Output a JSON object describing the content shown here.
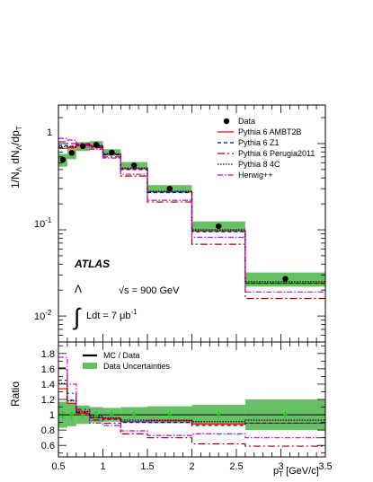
{
  "chart_data": [
    {
      "type": "line",
      "panel": "main",
      "ylabel": "1/N_Λ dN_Λ/dp_T",
      "yscale": "log",
      "ylim": [
        0.005,
        2.8
      ],
      "xlim": [
        0.5,
        3.5
      ],
      "ytick_labels": [
        "10^-2",
        "10^-1",
        "1"
      ],
      "bin_edges": [
        0.5,
        0.6,
        0.7,
        0.85,
        1.0,
        1.2,
        1.5,
        2.0,
        2.6,
        3.5
      ],
      "series": [
        {
          "name": "Data",
          "style": "points",
          "color": "#000000",
          "x": [
            0.55,
            0.65,
            0.775,
            0.925,
            1.1,
            1.35,
            1.75,
            2.3,
            3.05
          ],
          "values": [
            0.65,
            0.78,
            0.93,
            0.97,
            0.79,
            0.56,
            0.3,
            0.11,
            0.027
          ]
        },
        {
          "name": "Pythia 6 AMBT2B",
          "style": "step",
          "color": "#ff0000",
          "dash": "",
          "values": [
            0.88,
            0.9,
            0.95,
            0.93,
            0.75,
            0.51,
            0.275,
            0.097,
            0.024
          ]
        },
        {
          "name": "Pythia 6 Z1",
          "style": "step",
          "color": "#0000cc",
          "dash": "4,3",
          "values": [
            0.95,
            0.93,
            0.96,
            0.93,
            0.74,
            0.5,
            0.27,
            0.095,
            0.024
          ]
        },
        {
          "name": "Pythia 6 Perugia2011",
          "style": "step",
          "color": "#990000",
          "dash": "8,3,2,3",
          "values": [
            1.05,
            1.0,
            1.0,
            0.9,
            0.7,
            0.42,
            0.21,
            0.068,
            0.016
          ]
        },
        {
          "name": "Pythia 8 4C",
          "style": "step",
          "color": "#000000",
          "dash": "1.5,1.5",
          "values": [
            0.92,
            0.92,
            0.97,
            0.95,
            0.76,
            0.52,
            0.28,
            0.1,
            0.025
          ]
        },
        {
          "name": "Herwig++",
          "style": "step",
          "color": "#cc00cc",
          "dash": "6,2,1.5,2",
          "values": [
            1.15,
            1.1,
            0.98,
            0.86,
            0.68,
            0.44,
            0.22,
            0.082,
            0.019
          ]
        }
      ],
      "uncertainty_band": {
        "color": "#66c066",
        "lower": [
          0.54,
          0.66,
          0.82,
          0.87,
          0.72,
          0.51,
          0.27,
          0.095,
          0.022
        ],
        "upper": [
          0.76,
          0.9,
          1.04,
          1.07,
          0.86,
          0.61,
          0.33,
          0.125,
          0.032
        ]
      }
    },
    {
      "type": "line",
      "panel": "ratio",
      "xlabel": "p_T [GeV/c]",
      "ylabel": "Ratio",
      "ylim": [
        0.45,
        1.95
      ],
      "xlim": [
        0.5,
        3.5
      ],
      "xticks": [
        0.5,
        1,
        1.5,
        2,
        2.5,
        3,
        3.5
      ],
      "yticks": [
        0.6,
        0.8,
        1,
        1.2,
        1.4,
        1.6,
        1.8
      ],
      "bin_edges": [
        0.5,
        0.6,
        0.7,
        0.85,
        1.0,
        1.2,
        1.5,
        2.0,
        2.6,
        3.5
      ],
      "unity_line": 1,
      "uncertainty_band": {
        "color": "#66c066",
        "lower": [
          0.83,
          0.85,
          0.88,
          0.9,
          0.91,
          0.9,
          0.89,
          0.87,
          0.8
        ],
        "upper": [
          1.17,
          1.15,
          1.12,
          1.1,
          1.09,
          1.1,
          1.11,
          1.13,
          1.2
        ]
      },
      "data_points": {
        "color": "#00cc00",
        "x": [
          0.55,
          0.65,
          0.775,
          0.925,
          1.1,
          1.35,
          1.75,
          2.3,
          3.05
        ],
        "values": [
          1,
          1,
          1,
          1,
          1,
          1,
          1,
          1,
          1
        ]
      },
      "series": [
        {
          "name": "Pythia 6 AMBT2B",
          "style": "step",
          "color": "#ff0000",
          "dash": "",
          "values": [
            1.34,
            1.15,
            1.02,
            0.96,
            0.95,
            0.91,
            0.92,
            0.88,
            0.89
          ]
        },
        {
          "name": "Pythia 6 Z1",
          "style": "step",
          "color": "#0000cc",
          "dash": "4,3",
          "values": [
            1.45,
            1.19,
            1.03,
            0.96,
            0.94,
            0.9,
            0.9,
            0.86,
            0.89
          ]
        },
        {
          "name": "Pythia 6 Perugia2011",
          "style": "step",
          "color": "#990000",
          "dash": "8,3,2,3",
          "values": [
            1.61,
            1.28,
            1.07,
            0.93,
            0.89,
            0.75,
            0.7,
            0.62,
            0.59
          ]
        },
        {
          "name": "Pythia 8 4C",
          "style": "step",
          "color": "#000000",
          "dash": "1.5,1.5",
          "values": [
            1.41,
            1.18,
            1.04,
            0.98,
            0.96,
            0.93,
            0.93,
            0.91,
            0.93
          ]
        },
        {
          "name": "Herwig++",
          "style": "step",
          "color": "#cc00cc",
          "dash": "6,2,1.5,2",
          "values": [
            1.75,
            1.4,
            1.05,
            0.89,
            0.86,
            0.79,
            0.73,
            0.75,
            0.7
          ]
        }
      ]
    }
  ],
  "legend_main": {
    "entries": [
      "Data",
      "Pythia 6 AMBT2B",
      "Pythia 6 Z1",
      "Pythia 6 Perugia2011",
      "Pythia 8 4C",
      "Herwig++"
    ]
  },
  "legend_ratio": {
    "entries": [
      "MC / Data",
      "Data Uncertainties"
    ]
  },
  "annotations": {
    "atlas": "ATLAS",
    "particle": "Λ",
    "sqrt_s": "√s = 900 GeV",
    "lumi": "Ldt = 7 μb",
    "lumi_exp": "-1",
    "integral": "∫"
  }
}
